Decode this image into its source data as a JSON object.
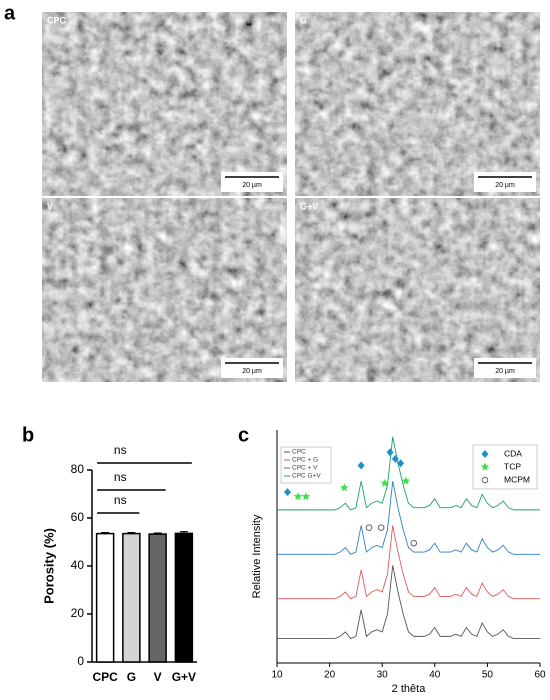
{
  "figure": {
    "panel_labels": [
      "a",
      "b",
      "c"
    ],
    "sem_images": [
      {
        "label": "CPC",
        "scale_bar": "20 µm"
      },
      {
        "label": "G",
        "scale_bar": "20 µm"
      },
      {
        "label": "V",
        "scale_bar": "20 µm"
      },
      {
        "label": "G+V",
        "scale_bar": "20 µm"
      }
    ]
  },
  "chart_data": [
    {
      "type": "bar",
      "ylabel": "Porosity (%)",
      "categories": [
        "CPC",
        "G",
        "V",
        "G+V"
      ],
      "values": [
        53.5,
        53.5,
        53.3,
        53.6
      ],
      "errors": [
        0.4,
        0.4,
        0.4,
        0.7
      ],
      "colors": [
        "#ffffff",
        "#d4d4d4",
        "#666666",
        "#000000"
      ],
      "ylim": [
        0,
        80
      ],
      "yticks": [
        0,
        20,
        40,
        60,
        80
      ],
      "comparisons": [
        {
          "from": 0,
          "to": 3,
          "label": "ns"
        },
        {
          "from": 0,
          "to": 2,
          "label": "ns"
        },
        {
          "from": 0,
          "to": 1,
          "label": "ns"
        }
      ]
    },
    {
      "type": "line",
      "xlabel": "2 thêta",
      "ylabel": "Relative Intensity",
      "x": [
        10,
        11,
        12,
        13,
        14,
        15,
        16,
        17,
        18,
        19,
        20,
        21,
        22,
        23,
        24,
        25,
        26,
        27,
        28,
        29,
        30,
        31,
        32,
        33,
        34,
        35,
        36,
        37,
        38,
        39,
        40,
        41,
        42,
        43,
        44,
        45,
        46,
        47,
        48,
        49,
        50,
        51,
        52,
        53,
        54,
        55,
        56,
        57,
        58,
        59,
        60
      ],
      "series": [
        {
          "name": "CPC",
          "color": "#555555",
          "values": [
            11,
            11,
            11,
            11,
            11,
            11,
            11,
            11,
            11,
            11,
            11,
            11,
            12,
            14,
            11,
            12,
            24,
            12,
            14,
            15,
            14,
            22,
            44,
            32,
            22,
            14,
            12,
            12,
            12,
            13,
            16,
            12,
            12,
            12,
            13,
            12,
            16,
            13,
            12,
            18,
            14,
            12,
            13,
            15,
            12,
            11,
            11,
            11,
            11,
            11,
            11
          ]
        },
        {
          "name": "CPC + G",
          "color": "#e05a5a",
          "values": [
            29,
            29,
            29,
            29,
            29,
            29,
            29,
            29,
            29,
            29,
            29,
            29,
            30,
            32,
            29,
            30,
            42,
            30,
            32,
            33,
            32,
            40,
            62,
            50,
            40,
            32,
            30,
            30,
            30,
            31,
            34,
            30,
            30,
            30,
            31,
            30,
            34,
            31,
            30,
            36,
            32,
            30,
            31,
            33,
            30,
            29,
            29,
            29,
            29,
            29,
            29
          ]
        },
        {
          "name": "CPC + V",
          "color": "#2e7fd0",
          "values": [
            49,
            49,
            49,
            49,
            49,
            49,
            49,
            49,
            49,
            49,
            49,
            49,
            50,
            52,
            49,
            50,
            62,
            50,
            52,
            53,
            52,
            60,
            82,
            70,
            60,
            52,
            50,
            50,
            50,
            51,
            54,
            50,
            50,
            50,
            51,
            50,
            54,
            51,
            50,
            56,
            52,
            50,
            51,
            53,
            50,
            49,
            49,
            49,
            49,
            49,
            49
          ]
        },
        {
          "name": "CPC G+V",
          "color": "#1aa36b",
          "values": [
            69,
            69,
            69,
            69,
            69,
            69,
            69,
            69,
            69,
            69,
            69,
            69,
            70,
            72,
            69,
            70,
            82,
            70,
            72,
            73,
            72,
            80,
            102,
            90,
            80,
            72,
            70,
            70,
            70,
            71,
            74,
            70,
            70,
            70,
            71,
            70,
            74,
            71,
            70,
            76,
            72,
            70,
            71,
            73,
            70,
            69,
            69,
            69,
            69,
            69,
            69
          ]
        }
      ],
      "markers": [
        {
          "name": "CDA",
          "color": "#1e90c8",
          "shape": "diamond",
          "x": [
            12,
            26,
            31.5,
            32.5,
            33.5
          ],
          "y": [
            77,
            89,
            95,
            92,
            90
          ]
        },
        {
          "name": "TCP",
          "color": "#3ee04a",
          "shape": "star",
          "x": [
            14,
            15.5,
            22.8,
            30.5,
            34.5
          ],
          "y": [
            75,
            75,
            79,
            81,
            82
          ]
        },
        {
          "name": "MCPM",
          "color": "#666666",
          "shape": "circle",
          "x": [
            27.5,
            29.8,
            36
          ],
          "y": [
            61,
            61,
            54
          ]
        }
      ],
      "xlim": [
        10,
        60
      ],
      "xticks": [
        10,
        20,
        30,
        40,
        50,
        60
      ],
      "ylim": [
        0,
        105
      ]
    }
  ]
}
